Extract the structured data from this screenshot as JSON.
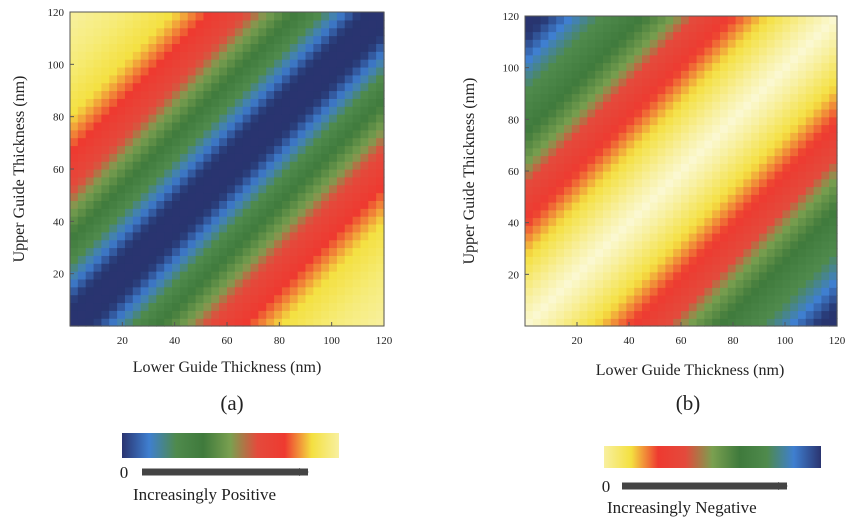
{
  "chart_data": [
    {
      "type": "heatmap",
      "panel_label": "(a)",
      "xlabel": "Lower Guide Thickness (nm)",
      "ylabel": "Upper Guide Thickness (nm)",
      "xlim": [
        0,
        120
      ],
      "ylim": [
        0,
        120
      ],
      "x_ticks": [
        20,
        40,
        60,
        80,
        100,
        120
      ],
      "y_ticks": [
        20,
        40,
        60,
        80,
        100,
        120
      ],
      "value_model": "value grows with |upper - lower|; minimum along the diagonal",
      "band_stops": [
        {
          "d": 0,
          "color": "#2a3470"
        },
        {
          "d": 8,
          "color": "#27356f"
        },
        {
          "d": 16,
          "color": "#3f7fd0"
        },
        {
          "d": 24,
          "color": "#4f8a4c"
        },
        {
          "d": 34,
          "color": "#3f7a3c"
        },
        {
          "d": 44,
          "color": "#7aa050"
        },
        {
          "d": 52,
          "color": "#e44a3c"
        },
        {
          "d": 66,
          "color": "#ee3a30"
        },
        {
          "d": 80,
          "color": "#f4e040"
        },
        {
          "d": 100,
          "color": "#f6ec7a"
        },
        {
          "d": 120,
          "color": "#f8f0a0"
        }
      ],
      "colorbar": {
        "colors": [
          "#2a3470",
          "#3f7fd0",
          "#4f8a4c",
          "#3f7a3c",
          "#7aa050",
          "#e44a3c",
          "#ee3a30",
          "#f4e040",
          "#f8f0a0"
        ],
        "zero_label": "0",
        "caption": "Increasingly Positive"
      }
    },
    {
      "type": "heatmap",
      "panel_label": "(b)",
      "xlabel": "Lower Guide Thickness (nm)",
      "ylabel": "Upper Guide Thickness (nm)",
      "xlim": [
        0,
        120
      ],
      "ylim": [
        0,
        120
      ],
      "x_ticks": [
        20,
        40,
        60,
        80,
        100,
        120
      ],
      "y_ticks": [
        20,
        40,
        60,
        80,
        100,
        120
      ],
      "value_model": "value grows more negative with |upper - lower|; near zero along the diagonal",
      "band_stops": [
        {
          "d": 0,
          "color": "#fbf8d0"
        },
        {
          "d": 10,
          "color": "#f8f0a0"
        },
        {
          "d": 26,
          "color": "#f4e040"
        },
        {
          "d": 40,
          "color": "#ee3a30"
        },
        {
          "d": 54,
          "color": "#e44a3c"
        },
        {
          "d": 62,
          "color": "#7aa050"
        },
        {
          "d": 74,
          "color": "#3f7a3c"
        },
        {
          "d": 90,
          "color": "#4f8a4c"
        },
        {
          "d": 102,
          "color": "#3f7fd0"
        },
        {
          "d": 112,
          "color": "#27356f"
        },
        {
          "d": 120,
          "color": "#2a3470"
        }
      ],
      "colorbar": {
        "colors": [
          "#f8f0a0",
          "#f4e040",
          "#ee3a30",
          "#e44a3c",
          "#7aa050",
          "#3f7a3c",
          "#4f8a4c",
          "#3f7fd0",
          "#2a3470"
        ],
        "zero_label": "0",
        "caption": "Increasingly Negative"
      }
    }
  ]
}
